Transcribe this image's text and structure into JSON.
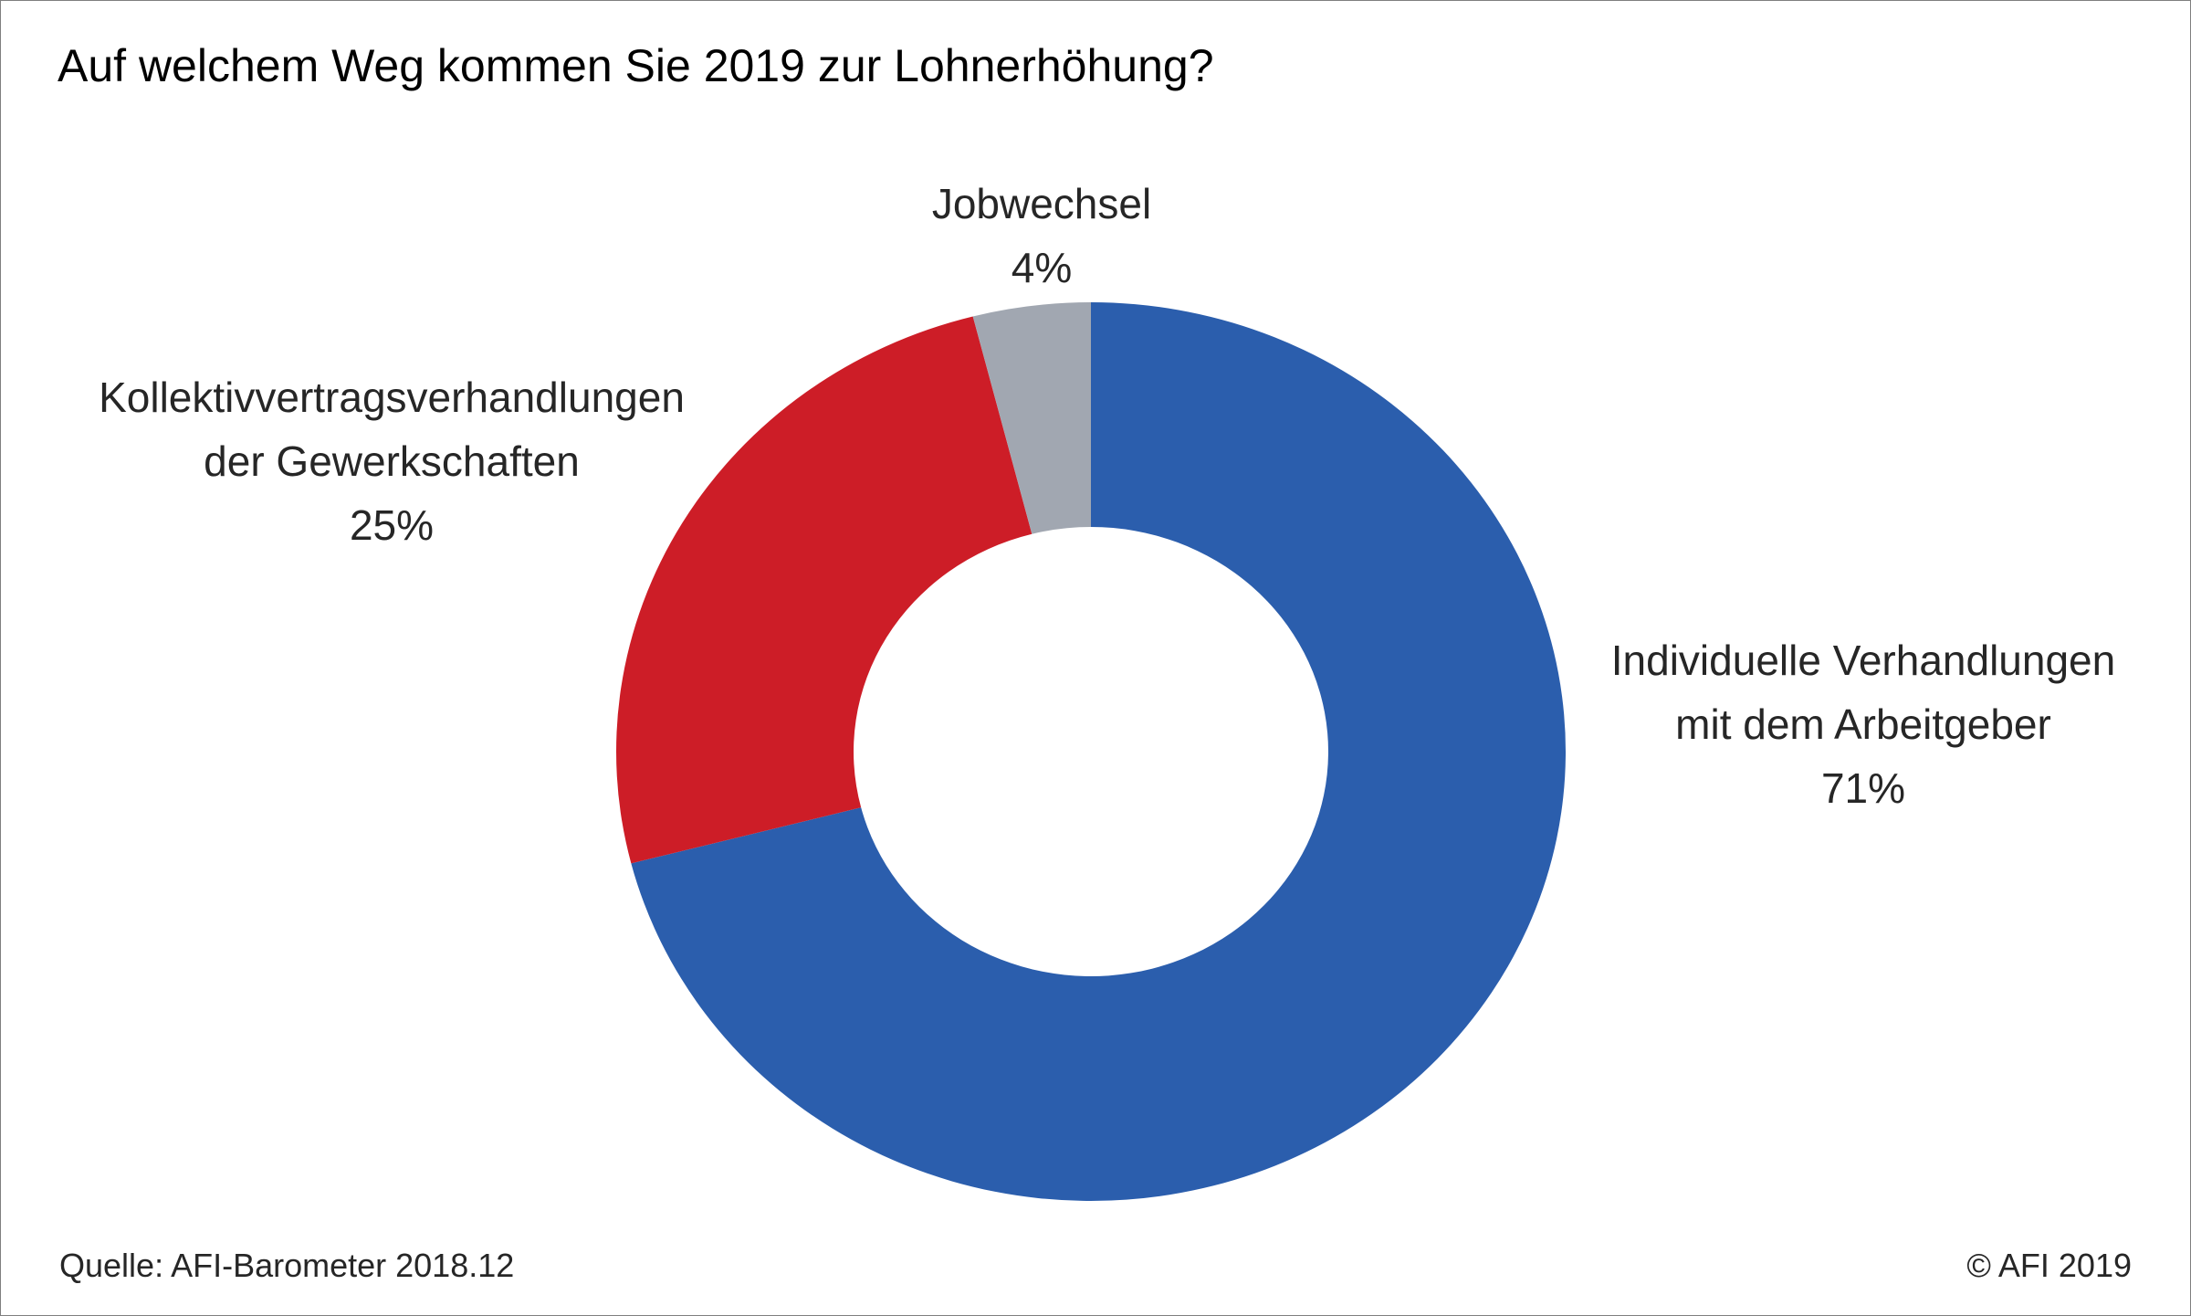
{
  "chart_data": {
    "type": "pie",
    "title": "Auf welchem Weg kommen Sie 2019 zur Lohnerhöhung?",
    "slices": [
      {
        "label_lines": [
          "Individuelle Verhandlungen",
          "mit dem Arbeitgeber"
        ],
        "value": 71,
        "value_label": "71%",
        "color": "#2b5ead"
      },
      {
        "label_lines": [
          "Kollektivvertragsverhandlungen",
          "der Gewerkschaften"
        ],
        "value": 25,
        "value_label": "25%",
        "color": "#cd1d27"
      },
      {
        "label_lines": [
          "Jobwechsel"
        ],
        "value": 4,
        "value_label": "4%",
        "color": "#a1a7b1"
      }
    ],
    "donut": true,
    "start": "12 o'clock",
    "direction": "clockwise"
  },
  "footer": {
    "source": "Quelle: AFI-Barometer 2018.12",
    "copyright": "© AFI 2019"
  }
}
